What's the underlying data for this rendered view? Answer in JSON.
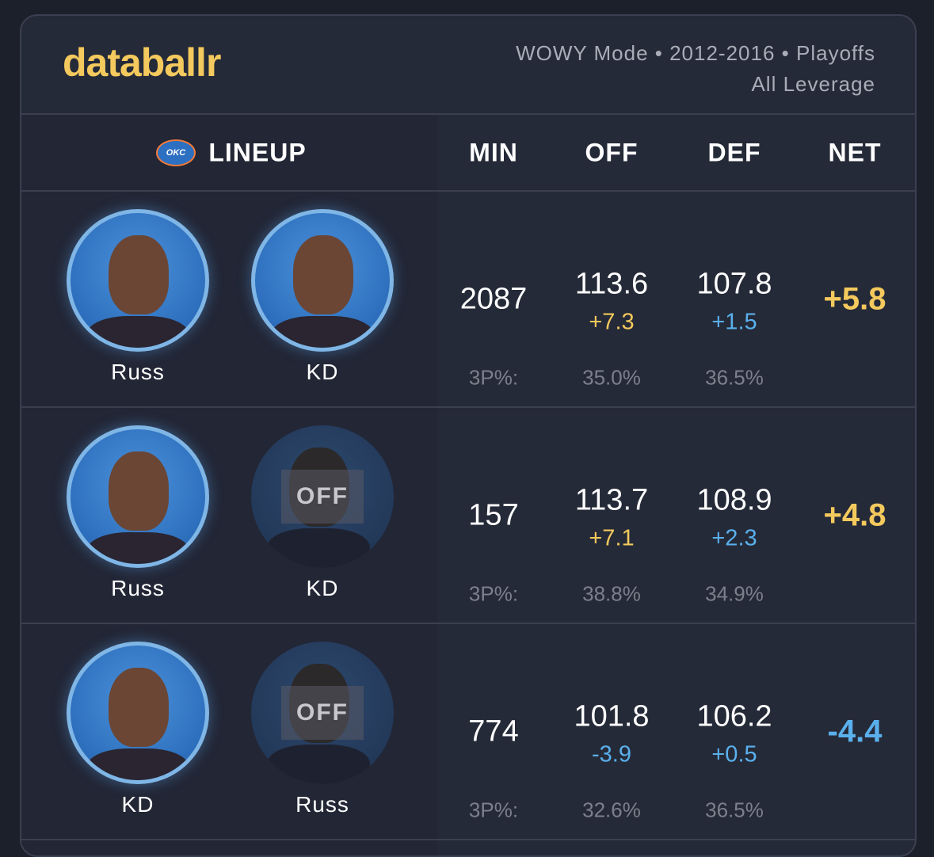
{
  "header": {
    "logo": "databallr",
    "settings_line1": "WOWY Mode • 2012-2016 • Playoffs",
    "settings_line2": "All Leverage"
  },
  "table": {
    "columns": [
      "LINEUP",
      "MIN",
      "OFF",
      "DEF",
      "NET"
    ],
    "team_logo": "OKC",
    "three_pt_label": "3P%:",
    "off_label": "OFF",
    "rows": [
      {
        "players": [
          {
            "name": "Russ",
            "on": true
          },
          {
            "name": "KD",
            "on": true
          }
        ],
        "min": 2087,
        "off": 113.6,
        "off_diff": "+7.3",
        "def": 107.8,
        "def_diff": "+1.5",
        "net": "+5.8",
        "off_3p": "35.0%",
        "def_3p": "36.5%"
      },
      {
        "players": [
          {
            "name": "Russ",
            "on": true
          },
          {
            "name": "KD",
            "on": false
          }
        ],
        "min": 157,
        "off": 113.7,
        "off_diff": "+7.1",
        "def": 108.9,
        "def_diff": "+2.3",
        "net": "+4.8",
        "off_3p": "38.8%",
        "def_3p": "34.9%"
      },
      {
        "players": [
          {
            "name": "KD",
            "on": true
          },
          {
            "name": "Russ",
            "on": false
          }
        ],
        "min": 774,
        "off": 101.8,
        "off_diff": "-3.9",
        "def": 106.2,
        "def_diff": "+0.5",
        "net": "-4.4",
        "off_3p": "32.6%",
        "def_3p": "36.5%"
      }
    ]
  }
}
